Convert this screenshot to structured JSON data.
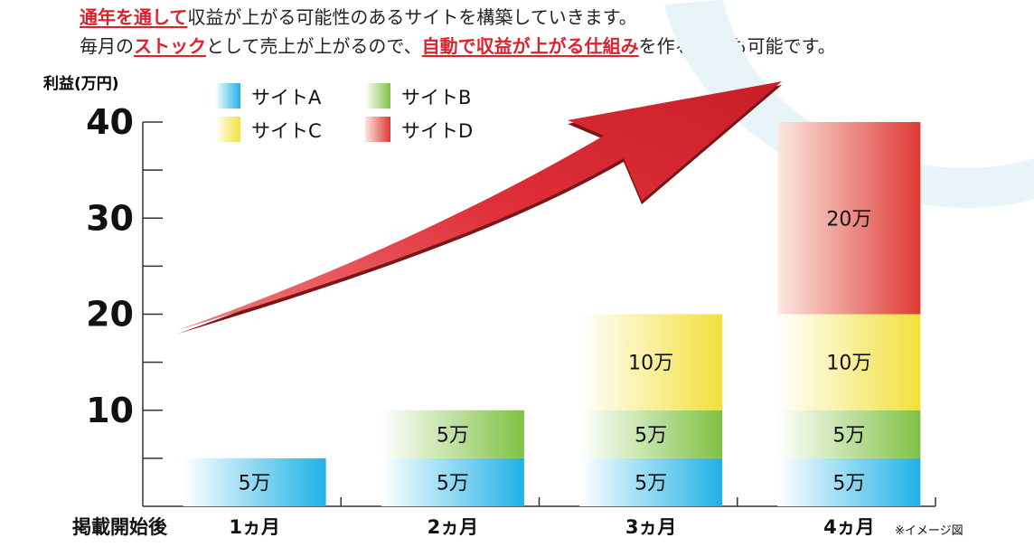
{
  "headline": {
    "line1": [
      {
        "text": "通年を通して",
        "highlight": true
      },
      {
        "text": "収益が上がる可能性のあるサイトを構築していきます。",
        "highlight": false
      }
    ],
    "line2": [
      {
        "text": "毎月の",
        "highlight": false
      },
      {
        "text": "ストック",
        "highlight": true
      },
      {
        "text": "として売上が上がるので、",
        "highlight": false
      },
      {
        "text": "自動で収益が上がる仕組み",
        "highlight": true
      },
      {
        "text": "を作ることも可能です。",
        "highlight": false
      }
    ]
  },
  "colors": {
    "highlight": "#e0202c",
    "siteA": "#1fb2e6",
    "siteB": "#7fc244",
    "siteC": "#f2e03a",
    "siteD": "#dd3a33",
    "arrow": "#d8323a"
  },
  "chart_data": {
    "type": "bar",
    "stacked": true,
    "ylabel": "利益(万円)",
    "xlabel": "掲載開始後",
    "ylim": [
      0,
      40
    ],
    "yticks": [
      10,
      20,
      30,
      40
    ],
    "categories": [
      "1ヵ月",
      "2ヵ月",
      "3ヵ月",
      "4ヵ月"
    ],
    "series": [
      {
        "name": "サイトA",
        "values": [
          5,
          5,
          5,
          5
        ],
        "labels": [
          "5万",
          "5万",
          "5万",
          "5万"
        ]
      },
      {
        "name": "サイトB",
        "values": [
          0,
          5,
          5,
          5
        ],
        "labels": [
          "",
          "5万",
          "5万",
          "5万"
        ]
      },
      {
        "name": "サイトC",
        "values": [
          0,
          0,
          10,
          10
        ],
        "labels": [
          "",
          "",
          "10万",
          "10万"
        ]
      },
      {
        "name": "サイトD",
        "values": [
          0,
          0,
          0,
          20
        ],
        "labels": [
          "",
          "",
          "",
          "20万"
        ]
      }
    ],
    "legend_position": "top-left",
    "grid": false,
    "annotation": "※イメージ図",
    "trend_arrow": "rising arrow from bottom-left to top-right"
  }
}
